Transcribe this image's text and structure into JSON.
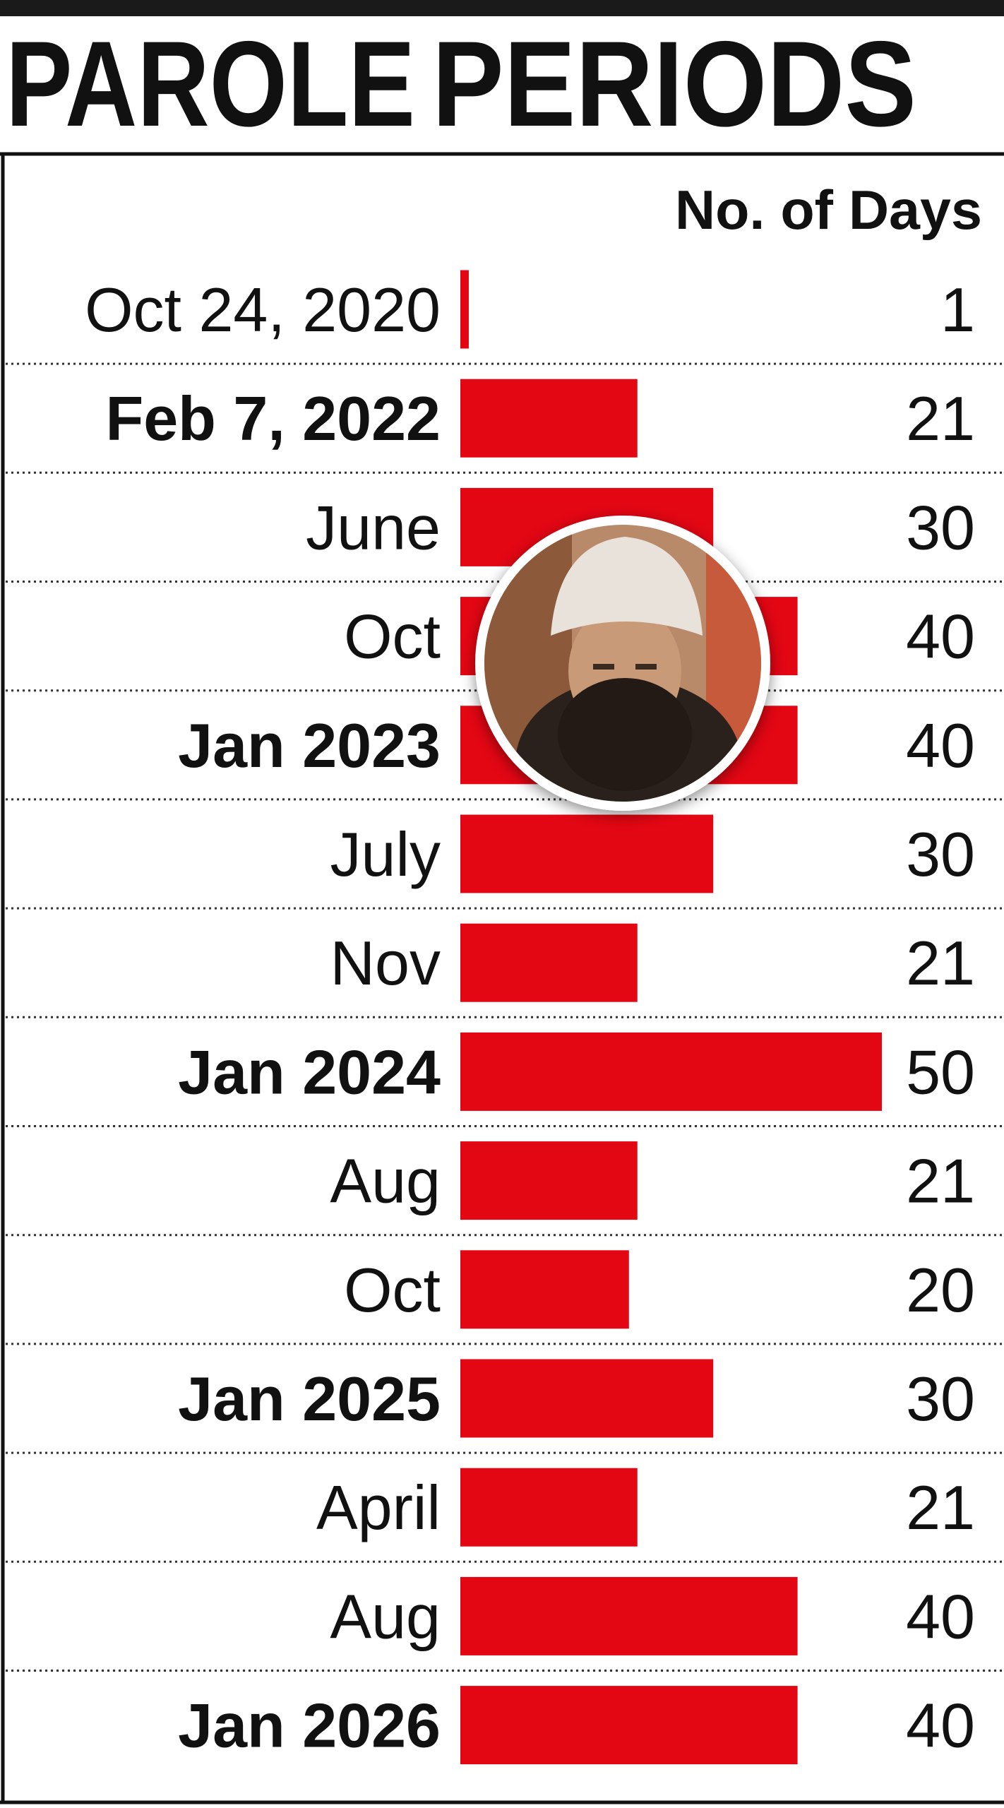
{
  "chart_data": {
    "type": "bar",
    "orientation": "horizontal",
    "title": [
      {
        "text": "PAROLE",
        "color": "#e30613"
      },
      {
        "text": "PERIODS",
        "color": "#808080"
      }
    ],
    "value_axis_label": "No. of Days",
    "categories": [
      "Oct 24, 2020",
      "Feb 7, 2022",
      "June",
      "Oct",
      "Jan 2023",
      "July",
      "Nov",
      "Jan 2024",
      "Aug",
      "Oct",
      "Jan 2025",
      "April",
      "Aug",
      "Jan 2026"
    ],
    "bold_categories": [
      false,
      true,
      false,
      false,
      true,
      false,
      false,
      true,
      false,
      false,
      true,
      false,
      false,
      true
    ],
    "values": [
      1,
      21,
      30,
      40,
      40,
      30,
      21,
      50,
      21,
      20,
      30,
      21,
      40,
      40
    ],
    "color": "#e30613",
    "xlim": [
      0,
      50
    ]
  }
}
